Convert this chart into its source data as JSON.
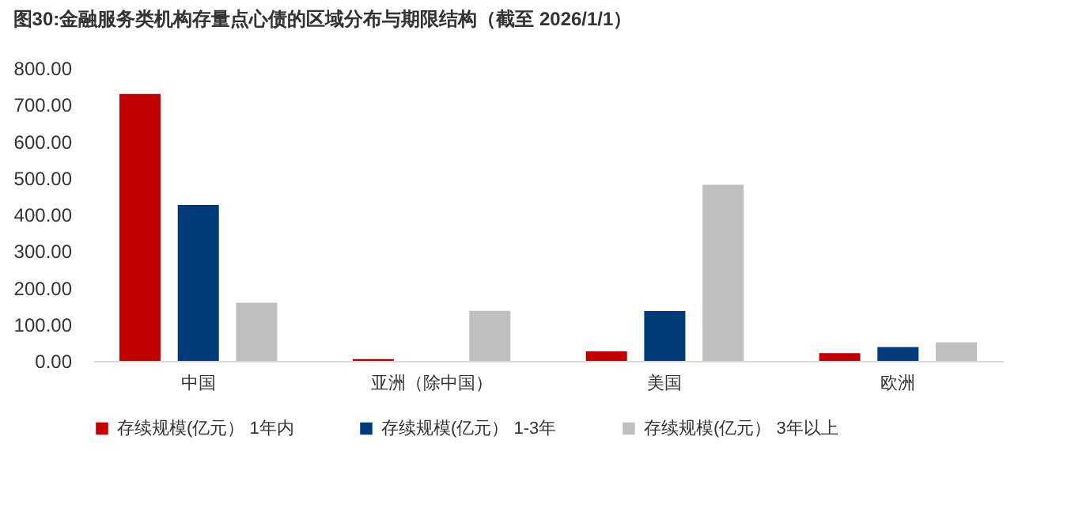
{
  "chart_data": {
    "type": "bar",
    "title": "图30:金融服务类机构存量点心债的区域分布与期限结构（截至 2026/1/1）",
    "categories": [
      "中国",
      "亚洲（除中国）",
      "美国",
      "欧洲"
    ],
    "series": [
      {
        "name": "存续规模(亿元） 1年内",
        "color": "#c00000",
        "values": [
          729,
          5,
          26,
          21
        ]
      },
      {
        "name": "存续规模(亿元） 1-3年",
        "color": "#003a78",
        "values": [
          426,
          null,
          136,
          38
        ]
      },
      {
        "name": "存续规模(亿元） 3年以上",
        "color": "#bfbfbf",
        "values": [
          159,
          137,
          481,
          51
        ]
      }
    ],
    "ylim": [
      0,
      800
    ],
    "yticks": [
      {
        "value": 0,
        "label": "0.00"
      },
      {
        "value": 100,
        "label": "100.00"
      },
      {
        "value": 200,
        "label": "200.00"
      },
      {
        "value": 300,
        "label": "300.00"
      },
      {
        "value": 400,
        "label": "400.00"
      },
      {
        "value": 500,
        "label": "500.00"
      },
      {
        "value": 600,
        "label": "600.00"
      },
      {
        "value": 700,
        "label": "700.00"
      },
      {
        "value": 800,
        "label": "800.00"
      }
    ],
    "grid": false,
    "legend": "bottom"
  }
}
